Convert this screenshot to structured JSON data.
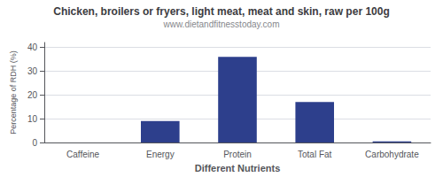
{
  "chart_data": {
    "type": "bar",
    "title": "Chicken, broilers or fryers, light meat, meat and skin, raw per 100g",
    "subtitle": "www.dietandfitnesstoday.com",
    "xlabel": "Different Nutrients",
    "ylabel": "Percentage of RDH (%)",
    "categories": [
      "Caffeine",
      "Energy",
      "Protein",
      "Total Fat",
      "Carbohydrate"
    ],
    "values": [
      0,
      9,
      36,
      17,
      0.5
    ],
    "color": "#2d3f8c",
    "ylim": [
      0,
      42
    ],
    "yticks": [
      0,
      10,
      20,
      30,
      40
    ],
    "grid": true
  }
}
